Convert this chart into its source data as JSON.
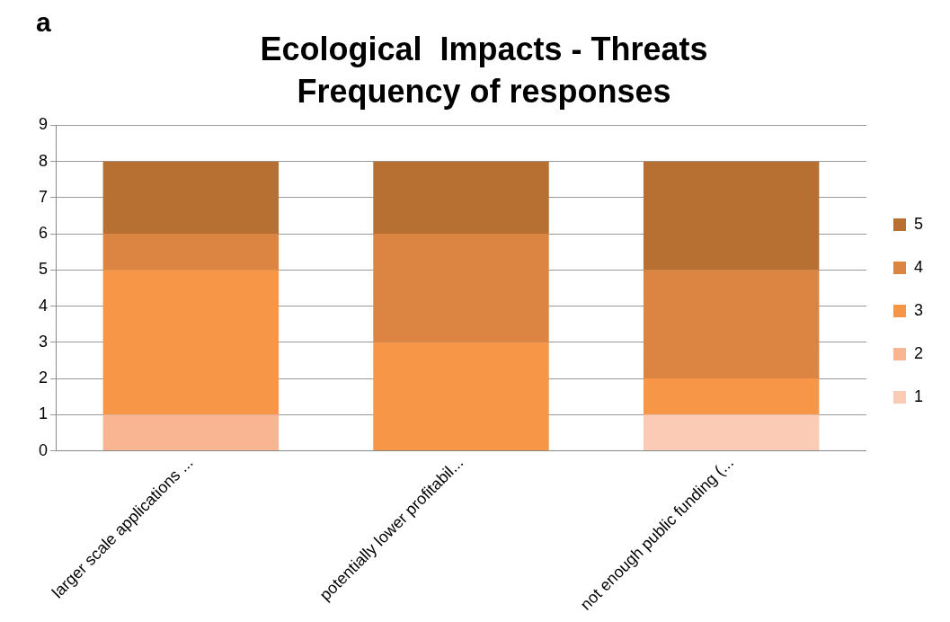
{
  "chart_data": {
    "type": "bar",
    "title": "Ecological  Impacts - Threats",
    "subtitle": "Frequency of responses",
    "annotations": [
      "a"
    ],
    "categories": [
      "larger scale applications ...",
      "potentially lower profitabil...",
      "not enough public funding (..."
    ],
    "stacked": true,
    "legend": "right",
    "grid": "y",
    "ylim": [
      0,
      9
    ],
    "yticks": [
      0,
      1,
      2,
      3,
      4,
      5,
      6,
      7,
      8,
      9
    ],
    "series": [
      {
        "name": "1",
        "color": "#fbcbb5",
        "values": [
          0,
          0,
          1
        ]
      },
      {
        "name": "2",
        "color": "#f9b491",
        "values": [
          1,
          0,
          0
        ]
      },
      {
        "name": "3",
        "color": "#f79646",
        "values": [
          4,
          3,
          1
        ]
      },
      {
        "name": "4",
        "color": "#dc8441",
        "values": [
          1,
          3,
          3
        ]
      },
      {
        "name": "5",
        "color": "#b87032",
        "values": [
          2,
          2,
          3
        ]
      }
    ]
  }
}
